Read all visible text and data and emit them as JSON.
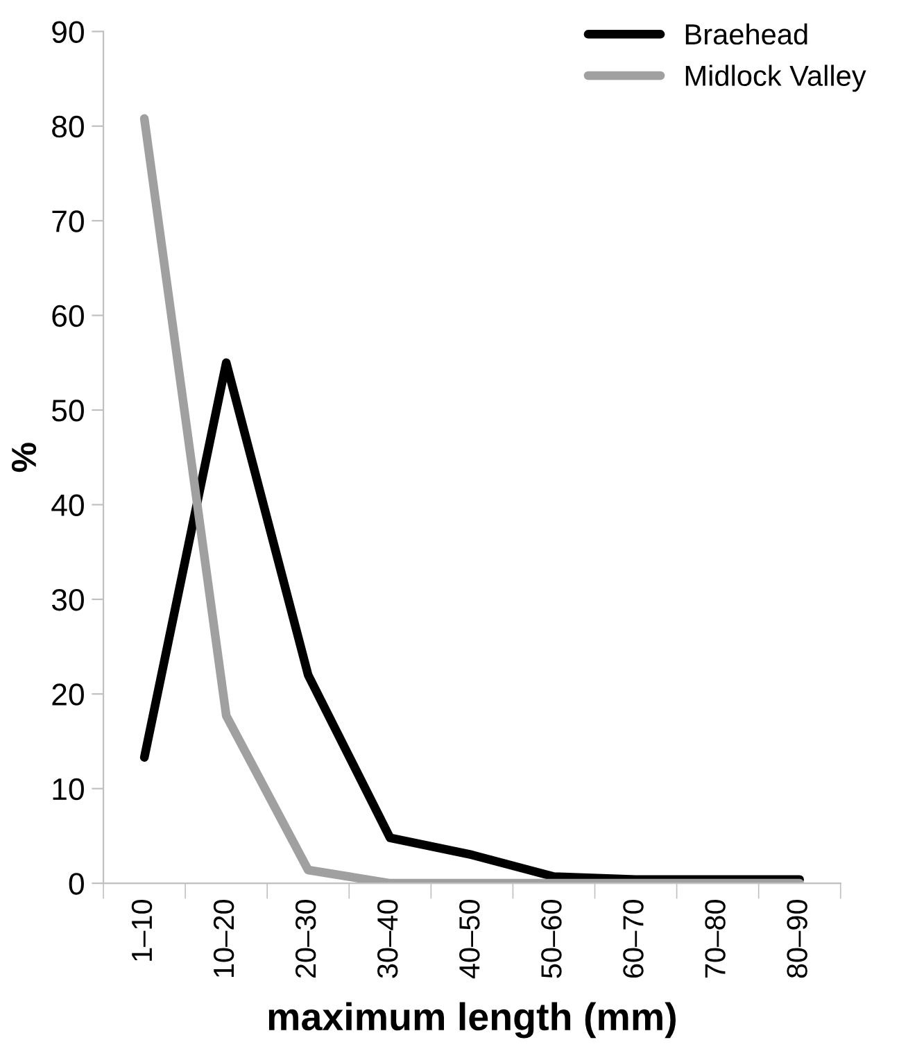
{
  "chart_data": {
    "type": "line",
    "xlabel": "maximum length (mm)",
    "ylabel": "%",
    "categories": [
      "1–10",
      "10–20",
      "20–30",
      "30–40",
      "40–50",
      "50–60",
      "60–70",
      "70–80",
      "80–90"
    ],
    "series": [
      {
        "name": "Braehead",
        "color": "#000000",
        "values": [
          13.3,
          55,
          22,
          4.8,
          3.0,
          0.7,
          0.4,
          0.4,
          0.4
        ]
      },
      {
        "name": "Midlock Valley",
        "color": "#a0a0a0",
        "values": [
          80.8,
          17.7,
          1.4,
          0,
          0,
          0,
          0,
          0,
          0
        ]
      }
    ],
    "ylim": [
      0,
      90
    ],
    "yticks": [
      0,
      10,
      20,
      30,
      40,
      50,
      60,
      70,
      80,
      90
    ],
    "grid": false,
    "legend": "top right",
    "marker": "none",
    "line_style": "solid"
  }
}
